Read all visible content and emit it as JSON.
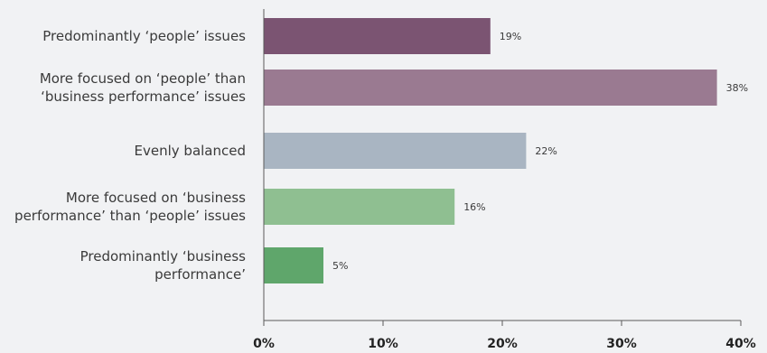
{
  "chart_data": {
    "type": "bar",
    "orientation": "horizontal",
    "categories": [
      [
        "Predominantly ‘people’ issues"
      ],
      [
        "More focused on ‘people’  than",
        "‘business performance’ issues"
      ],
      [
        "Evenly balanced"
      ],
      [
        "More focused on ‘business",
        "performance’ than ‘people’ issues"
      ],
      [
        "Predominantly ‘business",
        "performance’"
      ]
    ],
    "values": [
      19,
      38,
      22,
      16,
      5
    ],
    "value_labels": [
      "19%",
      "38%",
      "22%",
      "16%",
      "5%"
    ],
    "colors": [
      "#7b5472",
      "#9a7a91",
      "#a9b5c2",
      "#8fbf91",
      "#5fa66b"
    ],
    "xlim": [
      0,
      40
    ],
    "x_ticks": [
      0,
      10,
      20,
      30,
      40
    ],
    "x_tick_labels": [
      "0%",
      "10%",
      "20%",
      "30%",
      "40%"
    ],
    "grid": false,
    "legend": "none"
  }
}
